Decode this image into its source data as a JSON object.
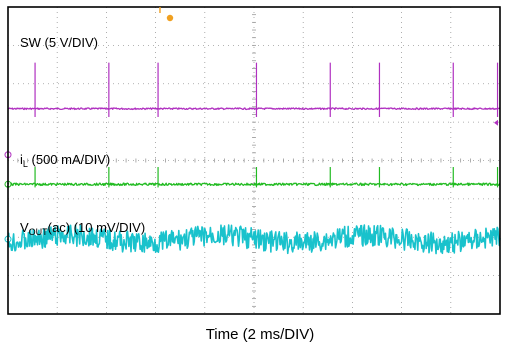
{
  "chart_data": {
    "type": "line",
    "title": "",
    "xlabel": "Time (2 ms/DIV)",
    "x_divisions": 10,
    "y_divisions": 8,
    "grid": true,
    "channels": [
      {
        "name_main": "SW (5 V/DIV)",
        "name_sub": "",
        "name_rest": "",
        "marker": "1",
        "color": "#b030c0",
        "baseline_div": 2.65,
        "spike_height_div": 1.2,
        "noise_div": 0.02,
        "spike_times_div": [
          0.55,
          2.05,
          3.05,
          5.05,
          6.55,
          7.55,
          9.05,
          9.95
        ]
      },
      {
        "name_main": "i",
        "name_sub": "L",
        "name_rest": " (500 mA/DIV)",
        "marker": "2",
        "color": "#22bb22",
        "baseline_div": 4.62,
        "spike_height_div": 0.45,
        "noise_div": 0.03,
        "spike_times_div": [
          0.55,
          2.05,
          3.05,
          5.05,
          6.55,
          7.55,
          9.05,
          9.95
        ]
      },
      {
        "name_main": "V",
        "name_sub": "OUT",
        "name_rest": "(ac) (10 mV/DIV)",
        "marker": "4",
        "color": "#19c2cc",
        "baseline_div": 6.05,
        "spike_height_div": 0.0,
        "noise_div": 0.28,
        "spike_times_div": []
      }
    ],
    "trigger_time_div": 3.15
  }
}
